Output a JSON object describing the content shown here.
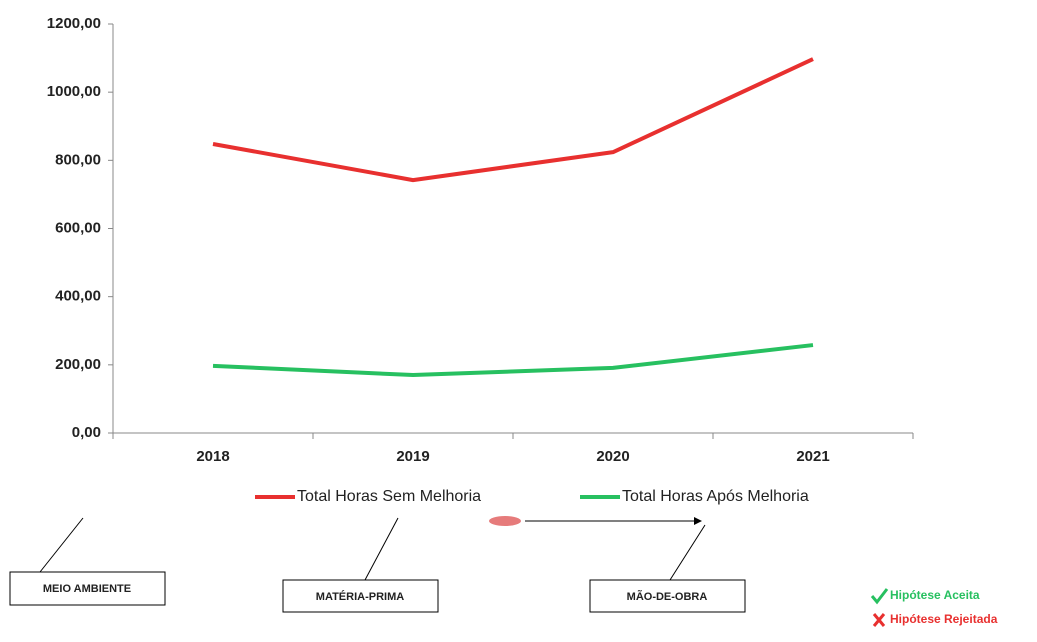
{
  "chart_data": {
    "type": "line",
    "categories": [
      "2018",
      "2019",
      "2020",
      "2021"
    ],
    "series": [
      {
        "name": "Total Horas Sem Melhoria",
        "color": "#e8302f",
        "values": [
          848,
          742,
          824,
          1097
        ]
      },
      {
        "name": "Total Horas Após Melhoria",
        "color": "#27c060",
        "values": [
          197,
          170,
          191,
          258
        ]
      }
    ],
    "ylim": [
      0,
      1200
    ],
    "yticks": [
      {
        "value": 0,
        "label": "0,00"
      },
      {
        "value": 200,
        "label": "200,00"
      },
      {
        "value": 400,
        "label": "400,00"
      },
      {
        "value": 600,
        "label": "600,00"
      },
      {
        "value": 800,
        "label": "800,00"
      },
      {
        "value": 1000,
        "label": "1000,00"
      },
      {
        "value": 1200,
        "label": "1200,00"
      }
    ],
    "legend": "bottom"
  },
  "diagram": {
    "boxes": [
      "MEIO AMBIENTE",
      "MATÉRIA-PRIMA",
      "MÃO-DE-OBRA"
    ],
    "key": {
      "accepted": "Hipótese Aceita",
      "rejected": "Hipótese Rejeitada"
    }
  }
}
